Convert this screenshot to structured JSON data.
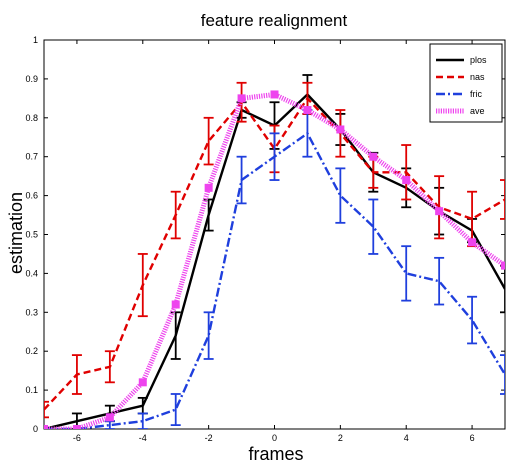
{
  "chart_data": {
    "type": "line",
    "title": "feature realignment",
    "xlabel": "frames",
    "ylabel": "estimation",
    "xlim": [
      -7,
      7
    ],
    "ylim": [
      0,
      1
    ],
    "xticks": [
      -6,
      -4,
      -2,
      0,
      2,
      4,
      6
    ],
    "yticks": [
      0,
      0.1,
      0.2,
      0.3,
      0.4,
      0.5,
      0.6,
      0.7,
      0.8,
      0.9,
      1
    ],
    "grid": false,
    "legend_position": "top-right",
    "x": [
      -7,
      -6,
      -5,
      -4,
      -3,
      -2,
      -1,
      0,
      1,
      2,
      3,
      4,
      5,
      6,
      7
    ],
    "series": [
      {
        "name": "plos",
        "color": "#000000",
        "style": "solid",
        "values": [
          0.0,
          0.02,
          0.04,
          0.06,
          0.24,
          0.55,
          0.82,
          0.78,
          0.86,
          0.77,
          0.66,
          0.62,
          0.56,
          0.51,
          0.36
        ],
        "errors": [
          0.0,
          0.02,
          0.02,
          0.02,
          0.06,
          0.04,
          0.02,
          0.06,
          0.05,
          0.04,
          0.05,
          0.05,
          0.06,
          0.03,
          0.06
        ]
      },
      {
        "name": "nas",
        "color": "#e00000",
        "style": "dashed",
        "values": [
          0.05,
          0.14,
          0.16,
          0.37,
          0.55,
          0.74,
          0.84,
          0.72,
          0.85,
          0.76,
          0.66,
          0.66,
          0.57,
          0.54,
          0.59
        ],
        "errors": [
          0.02,
          0.05,
          0.04,
          0.08,
          0.06,
          0.06,
          0.05,
          0.06,
          0.04,
          0.06,
          0.04,
          0.07,
          0.08,
          0.07,
          0.05
        ]
      },
      {
        "name": "fric",
        "color": "#1f3fdd",
        "style": "dashdot",
        "values": [
          0.0,
          0.0,
          0.01,
          0.02,
          0.05,
          0.24,
          0.64,
          0.7,
          0.76,
          0.6,
          0.52,
          0.4,
          0.38,
          0.28,
          0.14
        ],
        "errors": [
          0.0,
          0.0,
          0.01,
          0.02,
          0.04,
          0.06,
          0.06,
          0.06,
          0.06,
          0.07,
          0.07,
          0.07,
          0.06,
          0.06,
          0.05
        ]
      },
      {
        "name": "ave",
        "color": "#ee44ee",
        "style": "dotted",
        "values": [
          0.0,
          0.0,
          0.03,
          0.12,
          0.32,
          0.62,
          0.85,
          0.86,
          0.82,
          0.77,
          0.7,
          0.64,
          0.56,
          0.48,
          0.42
        ],
        "errors": [
          0.0,
          0.0,
          0.01,
          0.01,
          0.01,
          0.01,
          0.01,
          0.01,
          0.01,
          0.01,
          0.01,
          0.01,
          0.01,
          0.01,
          0.01
        ]
      }
    ]
  }
}
